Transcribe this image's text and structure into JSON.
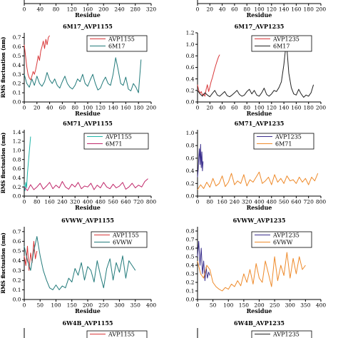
{
  "colors": {
    "red": "#d9383a",
    "teal": "#227a7a",
    "black": "#222222",
    "cyan": "#1fb5a8",
    "magenta": "#c0286a",
    "purple": "#3a2e8c",
    "orange": "#ee8a2a"
  },
  "chart_data": [
    {
      "id": "top-left-partial",
      "type": "line",
      "title": "",
      "xlabel": "Residue",
      "ylabel": "",
      "xticks": [
        0,
        40,
        80,
        120,
        160,
        200,
        240,
        280,
        320
      ],
      "xlim": [
        0,
        320
      ],
      "ylim": [
        0,
        1
      ],
      "series": []
    },
    {
      "id": "top-right-partial",
      "type": "line",
      "title": "",
      "xlabel": "Residue",
      "ylabel": "",
      "xticks": [
        0,
        20,
        40,
        60,
        80,
        100,
        120,
        140,
        160,
        180,
        200
      ],
      "xlim": [
        0,
        200
      ],
      "ylim": [
        0,
        1
      ],
      "series": []
    },
    {
      "id": "6m17-avp1155",
      "type": "line",
      "title": "6M17_AVP1155",
      "xlabel": "Residue",
      "ylabel": "RMS fluctuation (nm)",
      "xticks": [
        0,
        20,
        40,
        60,
        80,
        100,
        120,
        140,
        160,
        180,
        200
      ],
      "yticks": [
        0.0,
        0.1,
        0.2,
        0.3,
        0.4,
        0.5,
        0.6,
        0.7
      ],
      "xlim": [
        0,
        200
      ],
      "ylim": [
        0,
        0.75
      ],
      "legend": [
        "AVP1155",
        "6M17"
      ],
      "series": [
        {
          "name": "AVP1155",
          "color": "red",
          "x": [
            0,
            2,
            4,
            6,
            8,
            10,
            12,
            14,
            16,
            18,
            20,
            22,
            24,
            26,
            28,
            30,
            32,
            34,
            36,
            38,
            40
          ],
          "y": [
            0.62,
            0.5,
            0.38,
            0.3,
            0.26,
            0.24,
            0.28,
            0.33,
            0.3,
            0.35,
            0.42,
            0.5,
            0.45,
            0.55,
            0.6,
            0.66,
            0.58,
            0.68,
            0.62,
            0.7,
            0.72
          ]
        },
        {
          "name": "6M17",
          "color": "teal",
          "x": [
            0,
            4,
            8,
            12,
            16,
            20,
            24,
            28,
            32,
            36,
            40,
            44,
            48,
            52,
            56,
            60,
            64,
            68,
            72,
            76,
            80,
            84,
            88,
            92,
            96,
            100,
            104,
            108,
            112,
            116,
            120,
            124,
            128,
            132,
            136,
            140,
            144,
            148,
            152,
            156,
            160,
            164,
            168,
            172,
            176,
            180,
            184
          ],
          "y": [
            0.3,
            0.2,
            0.16,
            0.25,
            0.18,
            0.28,
            0.2,
            0.17,
            0.22,
            0.32,
            0.24,
            0.2,
            0.25,
            0.18,
            0.15,
            0.22,
            0.28,
            0.2,
            0.16,
            0.14,
            0.18,
            0.25,
            0.22,
            0.3,
            0.2,
            0.17,
            0.24,
            0.3,
            0.2,
            0.13,
            0.15,
            0.22,
            0.27,
            0.2,
            0.18,
            0.3,
            0.48,
            0.35,
            0.2,
            0.18,
            0.27,
            0.14,
            0.12,
            0.2,
            0.16,
            0.1,
            0.46
          ]
        }
      ]
    },
    {
      "id": "6m17-avp1235",
      "type": "line",
      "title": "6M17_AVP1235",
      "xlabel": "Residue",
      "ylabel": "RMS fluctuation (nm)",
      "xticks": [
        0,
        20,
        40,
        60,
        80,
        100,
        120,
        140,
        160,
        180,
        200
      ],
      "yticks": [
        0.0,
        0.2,
        0.4,
        0.6,
        0.8,
        1.0,
        1.2
      ],
      "xlim": [
        0,
        200
      ],
      "ylim": [
        0,
        1.2
      ],
      "legend": [
        "AVP1235",
        "6M17"
      ],
      "series": [
        {
          "name": "AVP1235",
          "color": "red",
          "x": [
            0,
            2,
            4,
            6,
            8,
            10,
            12,
            14,
            16,
            18,
            20,
            22,
            24,
            26,
            28,
            30,
            32,
            34,
            36
          ],
          "y": [
            0.3,
            0.2,
            0.15,
            0.18,
            0.12,
            0.14,
            0.1,
            0.22,
            0.3,
            0.18,
            0.26,
            0.35,
            0.42,
            0.5,
            0.58,
            0.65,
            0.72,
            0.78,
            0.82
          ]
        },
        {
          "name": "6M17",
          "color": "black",
          "x": [
            0,
            4,
            8,
            12,
            16,
            20,
            24,
            28,
            32,
            36,
            40,
            44,
            48,
            52,
            56,
            60,
            64,
            68,
            72,
            76,
            80,
            84,
            88,
            92,
            96,
            100,
            104,
            108,
            112,
            116,
            120,
            124,
            128,
            132,
            136,
            140,
            144,
            148,
            152,
            156,
            160,
            164,
            168,
            172,
            176,
            180,
            184,
            188
          ],
          "y": [
            0.2,
            0.14,
            0.1,
            0.16,
            0.12,
            0.09,
            0.15,
            0.2,
            0.12,
            0.1,
            0.14,
            0.18,
            0.11,
            0.09,
            0.12,
            0.16,
            0.2,
            0.13,
            0.1,
            0.12,
            0.18,
            0.22,
            0.14,
            0.2,
            0.12,
            0.1,
            0.16,
            0.24,
            0.13,
            0.1,
            0.14,
            0.2,
            0.18,
            0.25,
            0.35,
            0.65,
            1.05,
            0.5,
            0.25,
            0.14,
            0.12,
            0.22,
            0.14,
            0.08,
            0.12,
            0.1,
            0.16,
            0.3
          ]
        }
      ]
    },
    {
      "id": "6m71-avp1155",
      "type": "line",
      "title": "6M71_AVP1155",
      "xlabel": "Residue",
      "ylabel": "RMS fluctuation (nm)",
      "xticks": [
        0,
        80,
        160,
        240,
        320,
        400,
        480,
        560,
        640,
        720,
        800
      ],
      "yticks": [
        0.0,
        0.2,
        0.4,
        0.6,
        0.8,
        1.0,
        1.2,
        1.4
      ],
      "xlim": [
        0,
        800
      ],
      "ylim": [
        0,
        1.45
      ],
      "legend": [
        "AVP1155",
        "6M71"
      ],
      "series": [
        {
          "name": "AVP1155",
          "color": "cyan",
          "x": [
            0,
            5,
            10,
            15,
            20,
            25,
            30,
            35,
            40
          ],
          "y": [
            0.25,
            0.12,
            0.3,
            0.18,
            0.5,
            0.7,
            0.9,
            1.1,
            1.3
          ]
        },
        {
          "name": "6M71",
          "color": "magenta",
          "x": [
            0,
            20,
            40,
            60,
            80,
            100,
            120,
            140,
            160,
            180,
            200,
            220,
            240,
            260,
            280,
            300,
            320,
            340,
            360,
            380,
            400,
            420,
            440,
            460,
            480,
            500,
            520,
            540,
            560,
            580,
            600,
            620,
            640,
            660,
            680,
            700,
            720,
            740,
            760,
            780
          ],
          "y": [
            0.2,
            0.12,
            0.25,
            0.14,
            0.2,
            0.28,
            0.15,
            0.22,
            0.3,
            0.16,
            0.24,
            0.18,
            0.32,
            0.2,
            0.15,
            0.26,
            0.2,
            0.3,
            0.16,
            0.22,
            0.2,
            0.28,
            0.14,
            0.24,
            0.18,
            0.3,
            0.2,
            0.16,
            0.26,
            0.18,
            0.22,
            0.3,
            0.15,
            0.2,
            0.28,
            0.18,
            0.24,
            0.2,
            0.32,
            0.38
          ]
        }
      ]
    },
    {
      "id": "6m71-avp1235",
      "type": "line",
      "title": "6M71_AVP1235",
      "xlabel": "Residue",
      "ylabel": "RMS fluctuation (nm)",
      "xticks": [
        0,
        80,
        160,
        240,
        320,
        400,
        480,
        560,
        640,
        720,
        800
      ],
      "yticks": [
        0.0,
        0.2,
        0.4,
        0.6,
        0.8,
        1.0
      ],
      "xlim": [
        0,
        800
      ],
      "ylim": [
        0,
        1.05
      ],
      "legend": [
        "AVP1235",
        "6M71"
      ],
      "series": [
        {
          "name": "AVP1235",
          "color": "purple",
          "x": [
            0,
            4,
            8,
            12,
            16,
            20,
            24,
            28,
            32,
            36
          ],
          "y": [
            0.3,
            0.42,
            0.6,
            0.75,
            0.5,
            0.82,
            0.45,
            0.7,
            0.4,
            0.55
          ]
        },
        {
          "name": "6M71",
          "color": "orange",
          "x": [
            0,
            20,
            40,
            60,
            80,
            100,
            120,
            140,
            160,
            180,
            200,
            220,
            240,
            260,
            280,
            300,
            320,
            340,
            360,
            380,
            400,
            420,
            440,
            460,
            480,
            500,
            520,
            540,
            560,
            580,
            600,
            620,
            640,
            660,
            680,
            700,
            720,
            740,
            760,
            780
          ],
          "y": [
            0.1,
            0.18,
            0.12,
            0.22,
            0.14,
            0.28,
            0.16,
            0.2,
            0.32,
            0.15,
            0.22,
            0.36,
            0.18,
            0.24,
            0.2,
            0.34,
            0.16,
            0.26,
            0.22,
            0.3,
            0.38,
            0.2,
            0.24,
            0.3,
            0.18,
            0.34,
            0.22,
            0.28,
            0.2,
            0.32,
            0.24,
            0.26,
            0.2,
            0.3,
            0.22,
            0.28,
            0.18,
            0.3,
            0.24,
            0.36
          ]
        }
      ]
    },
    {
      "id": "6vww-avp1155",
      "type": "line",
      "title": "6VWW_AVP1155",
      "xlabel": "Residue",
      "ylabel": "RMS fluctuation (nm)",
      "xticks": [
        0,
        50,
        100,
        150,
        200,
        250,
        300,
        350,
        400
      ],
      "yticks": [
        0.0,
        0.1,
        0.2,
        0.3,
        0.4,
        0.5,
        0.6,
        0.7
      ],
      "xlim": [
        0,
        400
      ],
      "ylim": [
        0,
        0.75
      ],
      "legend": [
        "AVP1155",
        "6VWW"
      ],
      "series": [
        {
          "name": "AVP1155",
          "color": "red",
          "x": [
            0,
            5,
            10,
            15,
            20,
            25,
            30,
            35,
            40
          ],
          "y": [
            0.45,
            0.35,
            0.55,
            0.3,
            0.48,
            0.38,
            0.6,
            0.42,
            0.5
          ]
        },
        {
          "name": "6VWW",
          "color": "teal",
          "x": [
            0,
            10,
            20,
            30,
            40,
            50,
            60,
            70,
            80,
            90,
            100,
            110,
            120,
            130,
            140,
            150,
            160,
            170,
            180,
            190,
            200,
            210,
            220,
            230,
            240,
            250,
            260,
            270,
            280,
            290,
            300,
            310,
            320,
            330,
            340,
            350
          ],
          "y": [
            0.55,
            0.4,
            0.3,
            0.5,
            0.65,
            0.45,
            0.3,
            0.2,
            0.12,
            0.1,
            0.15,
            0.1,
            0.14,
            0.12,
            0.22,
            0.18,
            0.32,
            0.25,
            0.38,
            0.2,
            0.34,
            0.3,
            0.18,
            0.4,
            0.25,
            0.12,
            0.32,
            0.42,
            0.2,
            0.38,
            0.28,
            0.45,
            0.22,
            0.4,
            0.35,
            0.3
          ]
        }
      ]
    },
    {
      "id": "6vww-avp1235",
      "type": "line",
      "title": "6VWW_AVP1235",
      "xlabel": "Residue",
      "ylabel": "RMS fluctuation (nm)",
      "xticks": [
        0,
        50,
        100,
        150,
        200,
        250,
        300,
        350,
        400
      ],
      "yticks": [
        0.0,
        0.1,
        0.2,
        0.3,
        0.4,
        0.5,
        0.6,
        0.7,
        0.8
      ],
      "xlim": [
        0,
        400
      ],
      "ylim": [
        0,
        0.85
      ],
      "legend": [
        "AVP1235",
        "6VWW"
      ],
      "series": [
        {
          "name": "AVP1235",
          "color": "purple",
          "x": [
            0,
            4,
            8,
            12,
            16,
            20,
            24,
            28,
            32,
            36,
            40
          ],
          "y": [
            0.5,
            0.68,
            0.4,
            0.6,
            0.3,
            0.45,
            0.22,
            0.38,
            0.25,
            0.32,
            0.28
          ]
        },
        {
          "name": "6VWW",
          "color": "orange",
          "x": [
            0,
            10,
            20,
            30,
            40,
            50,
            60,
            70,
            80,
            90,
            100,
            110,
            120,
            130,
            140,
            150,
            160,
            170,
            180,
            190,
            200,
            210,
            220,
            230,
            240,
            250,
            260,
            270,
            280,
            290,
            300,
            310,
            320,
            330,
            340,
            350
          ],
          "y": [
            0.45,
            0.3,
            0.25,
            0.4,
            0.35,
            0.2,
            0.15,
            0.12,
            0.1,
            0.14,
            0.12,
            0.18,
            0.15,
            0.22,
            0.16,
            0.3,
            0.2,
            0.35,
            0.18,
            0.42,
            0.25,
            0.2,
            0.45,
            0.3,
            0.15,
            0.5,
            0.22,
            0.4,
            0.28,
            0.55,
            0.25,
            0.48,
            0.3,
            0.5,
            0.35,
            0.4
          ]
        }
      ]
    },
    {
      "id": "6w4b-avp1155",
      "type": "line",
      "title": "6W4B_AVP1155",
      "xlabel": "",
      "ylabel": "",
      "legend": [
        "AVP1155"
      ],
      "series": []
    },
    {
      "id": "6w4b-avp1235",
      "type": "line",
      "title": "6W4B_AVP1235",
      "xlabel": "",
      "ylabel": "",
      "legend": [
        "AVP1235"
      ],
      "series": []
    }
  ]
}
